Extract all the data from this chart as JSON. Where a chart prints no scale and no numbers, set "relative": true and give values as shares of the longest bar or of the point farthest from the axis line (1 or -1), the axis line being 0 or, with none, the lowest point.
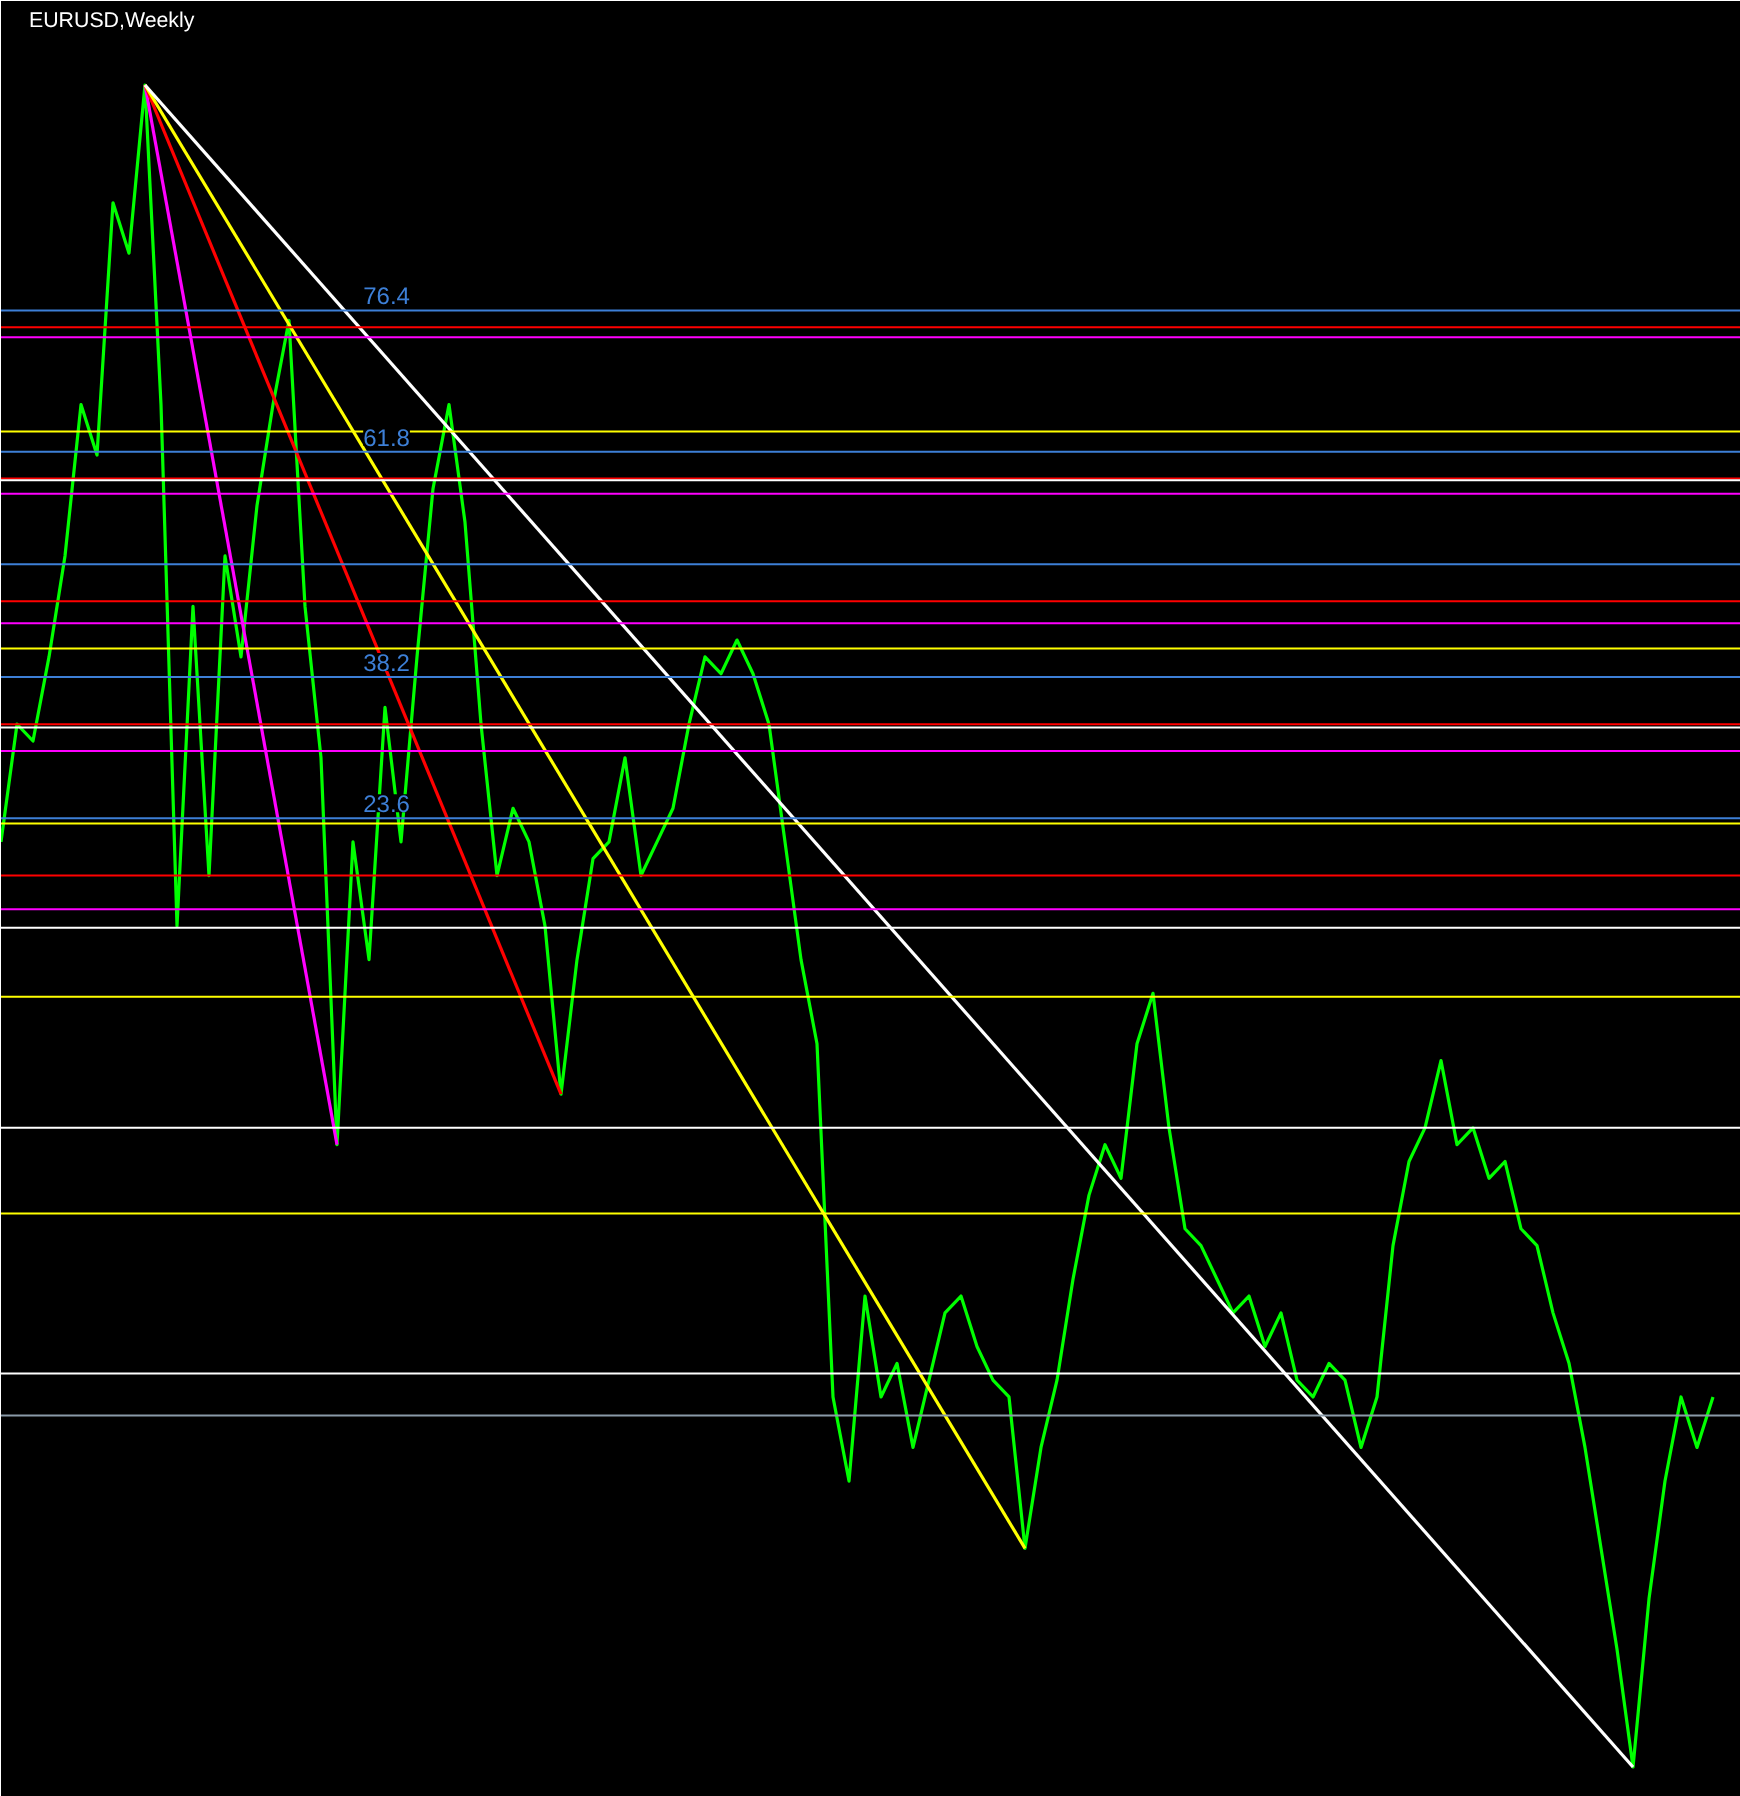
{
  "chart_data": {
    "type": "line",
    "title": "EURUSD,Weekly",
    "relative": true,
    "grid": false,
    "marker": "none",
    "line_style": "solid",
    "categories": [
      null,
      null,
      null,
      null,
      null,
      null,
      null,
      null,
      null,
      null,
      null,
      null,
      null,
      null,
      null,
      null,
      null,
      null,
      null,
      null,
      null,
      null,
      null,
      null,
      null,
      null,
      null,
      null,
      null,
      null,
      null,
      null,
      null,
      null,
      null,
      null,
      null,
      null,
      null,
      null,
      null,
      null,
      null,
      null,
      null,
      null,
      null,
      null,
      null,
      null,
      null,
      null,
      null,
      null,
      null,
      null,
      null,
      null,
      null,
      null,
      null,
      null,
      null,
      null,
      null,
      null,
      null,
      null,
      null,
      null,
      null,
      null,
      null,
      null,
      null,
      null,
      null,
      null,
      null,
      null,
      null,
      null,
      null,
      null,
      null,
      null,
      null,
      null,
      null,
      null,
      null,
      null,
      null,
      null,
      null,
      null,
      null,
      null,
      null,
      null,
      null,
      null,
      null,
      null,
      null,
      null,
      null,
      null
    ],
    "series": [
      {
        "color": "#00ff00",
        "values": [
          0.55,
          0.62,
          0.61,
          0.66,
          0.72,
          0.81,
          0.78,
          0.93,
          0.9,
          1,
          0.81,
          0.5,
          0.69,
          0.53,
          0.72,
          0.66,
          0.75,
          0.81,
          0.86,
          0.69,
          0.6,
          0.37,
          0.55,
          0.48,
          0.63,
          0.55,
          0.66,
          0.76,
          0.81,
          0.74,
          0.62,
          0.53,
          0.57,
          0.55,
          0.5,
          0.4,
          0.48,
          0.54,
          0.55,
          0.6,
          0.53,
          0.55,
          0.57,
          0.62,
          0.66,
          0.65,
          0.67,
          0.65,
          0.62,
          0.55,
          0.48,
          0.43,
          0.22,
          0.17,
          0.28,
          0.22,
          0.24,
          0.19,
          0.23,
          0.27,
          0.28,
          0.25,
          0.23,
          0.22,
          0.13,
          0.19,
          0.23,
          0.29,
          0.34,
          0.37,
          0.35,
          0.43,
          0.46,
          0.38,
          0.32,
          0.31,
          0.29,
          0.27,
          0.28,
          0.25,
          0.27,
          0.23,
          0.22,
          0.24,
          0.23,
          0.19,
          0.22,
          0.31,
          0.36,
          0.38,
          0.42,
          0.37,
          0.38,
          0.35,
          0.36,
          0.32,
          0.31,
          0.27,
          0.24,
          0.19,
          0.13,
          0.07,
          0,
          0.1,
          0.17,
          0.22,
          0.19,
          0.22
        ]
      },
      {
        "type": "line",
        "color": "#ff00ff",
        "values": [
          null,
          null,
          null,
          null,
          null,
          null,
          null,
          null,
          null,
          1,
          null,
          null,
          null,
          null,
          null,
          null,
          null,
          null,
          null,
          null,
          null,
          0.37,
          null,
          null,
          null,
          null,
          null,
          null,
          null,
          null,
          null,
          null,
          null,
          null,
          null,
          null,
          null,
          null,
          null,
          null,
          null,
          null,
          null,
          null,
          null,
          null,
          null,
          null,
          null,
          null,
          null,
          null,
          null,
          null,
          null,
          null,
          null,
          null,
          null,
          null,
          null,
          null,
          null,
          null,
          null,
          null,
          null,
          null,
          null,
          null,
          null,
          null,
          null,
          null,
          null,
          null,
          null,
          null,
          null,
          null,
          null,
          null,
          null,
          null,
          null,
          null,
          null,
          null,
          null,
          null,
          null,
          null,
          null,
          null,
          null,
          null,
          null,
          null,
          null,
          null,
          null,
          null,
          null,
          null,
          null,
          null,
          null,
          null
        ]
      },
      {
        "type": "line",
        "color": "#ff0000",
        "values": [
          null,
          null,
          null,
          null,
          null,
          null,
          null,
          null,
          null,
          1,
          null,
          null,
          null,
          null,
          null,
          null,
          null,
          null,
          null,
          null,
          null,
          null,
          null,
          null,
          null,
          null,
          null,
          null,
          null,
          null,
          null,
          null,
          null,
          null,
          null,
          0.4,
          null,
          null,
          null,
          null,
          null,
          null,
          null,
          null,
          null,
          null,
          null,
          null,
          null,
          null,
          null,
          null,
          null,
          null,
          null,
          null,
          null,
          null,
          null,
          null,
          null,
          null,
          null,
          null,
          null,
          null,
          null,
          null,
          null,
          null,
          null,
          null,
          null,
          null,
          null,
          null,
          null,
          null,
          null,
          null,
          null,
          null,
          null,
          null,
          null,
          null,
          null,
          null,
          null,
          null,
          null,
          null,
          null,
          null,
          null,
          null,
          null,
          null,
          null,
          null,
          null,
          null,
          null,
          null,
          null,
          null,
          null,
          null
        ]
      },
      {
        "type": "line",
        "color": "#ffff00",
        "values": [
          null,
          null,
          null,
          null,
          null,
          null,
          null,
          null,
          null,
          1,
          null,
          null,
          null,
          null,
          null,
          null,
          null,
          null,
          null,
          null,
          null,
          null,
          null,
          null,
          null,
          null,
          null,
          null,
          null,
          null,
          null,
          null,
          null,
          null,
          null,
          null,
          null,
          null,
          null,
          null,
          null,
          null,
          null,
          null,
          null,
          null,
          null,
          null,
          null,
          null,
          null,
          null,
          null,
          null,
          null,
          null,
          null,
          null,
          null,
          null,
          null,
          null,
          null,
          null,
          0.13,
          null,
          null,
          null,
          null,
          null,
          null,
          null,
          null,
          null,
          null,
          null,
          null,
          null,
          null,
          null,
          null,
          null,
          null,
          null,
          null,
          null,
          null,
          null,
          null,
          null,
          null,
          null,
          null,
          null,
          null,
          null,
          null,
          null,
          null,
          null,
          null,
          null,
          null,
          null,
          null,
          null,
          null,
          null
        ]
      },
      {
        "type": "line",
        "color": "#ffffff",
        "values": [
          null,
          null,
          null,
          null,
          null,
          null,
          null,
          null,
          null,
          1,
          null,
          null,
          null,
          null,
          null,
          null,
          null,
          null,
          null,
          null,
          null,
          null,
          null,
          null,
          null,
          null,
          null,
          null,
          null,
          null,
          null,
          null,
          null,
          null,
          null,
          null,
          null,
          null,
          null,
          null,
          null,
          null,
          null,
          null,
          null,
          null,
          null,
          null,
          null,
          null,
          null,
          null,
          null,
          null,
          null,
          null,
          null,
          null,
          null,
          null,
          null,
          null,
          null,
          null,
          null,
          null,
          null,
          null,
          null,
          null,
          null,
          null,
          null,
          null,
          null,
          null,
          null,
          null,
          null,
          null,
          null,
          null,
          null,
          null,
          null,
          null,
          null,
          null,
          null,
          null,
          null,
          null,
          null,
          null,
          null,
          null,
          null,
          null,
          null,
          null,
          null,
          null,
          0,
          null,
          null,
          null,
          null,
          null
        ]
      }
    ],
    "annotations": [
      "76.4",
      "61.8",
      "38.2",
      "23.6"
    ],
    "ref_lines": [
      {
        "axis": "y",
        "value": 0.866,
        "color": "#3d7fd6"
      },
      {
        "axis": "y",
        "value": 0.782,
        "color": "#3d7fd6"
      },
      {
        "axis": "y",
        "value": 0.648,
        "color": "#3d7fd6"
      },
      {
        "axis": "y",
        "value": 0.564,
        "color": "#3d7fd6"
      },
      {
        "axis": "y",
        "value": 0.715,
        "color": "#3d7fd6"
      },
      {
        "axis": "y",
        "value": 0.856,
        "color": "#ff0000"
      },
      {
        "axis": "y",
        "value": 0.85,
        "color": "#ff00ff"
      },
      {
        "axis": "y",
        "value": 0.794,
        "color": "#ffff00"
      },
      {
        "axis": "y",
        "value": 0.766,
        "color": "#ff0000"
      },
      {
        "axis": "y",
        "value": 0.765,
        "color": "#ffffff"
      },
      {
        "axis": "y",
        "value": 0.757,
        "color": "#ff00ff"
      },
      {
        "axis": "y",
        "value": 0.693,
        "color": "#ff0000"
      },
      {
        "axis": "y",
        "value": 0.68,
        "color": "#ff00ff"
      },
      {
        "axis": "y",
        "value": 0.665,
        "color": "#ffff00"
      },
      {
        "axis": "y",
        "value": 0.62,
        "color": "#ff0000"
      },
      {
        "axis": "y",
        "value": 0.618,
        "color": "#ffffff"
      },
      {
        "axis": "y",
        "value": 0.604,
        "color": "#ff00ff"
      },
      {
        "axis": "y",
        "value": 0.561,
        "color": "#ffff00"
      },
      {
        "axis": "y",
        "value": 0.53,
        "color": "#ff0000"
      },
      {
        "axis": "y",
        "value": 0.51,
        "color": "#ff00ff"
      },
      {
        "axis": "y",
        "value": 0.499,
        "color": "#ffffff"
      },
      {
        "axis": "y",
        "value": 0.458,
        "color": "#ffff00"
      },
      {
        "axis": "y",
        "value": 0.38,
        "color": "#ffffff"
      },
      {
        "axis": "y",
        "value": 0.329,
        "color": "#ffff00"
      },
      {
        "axis": "y",
        "value": 0.234,
        "color": "#ffffff"
      },
      {
        "axis": "y",
        "value": 0.209,
        "color": "#8a9aa8"
      }
    ]
  }
}
